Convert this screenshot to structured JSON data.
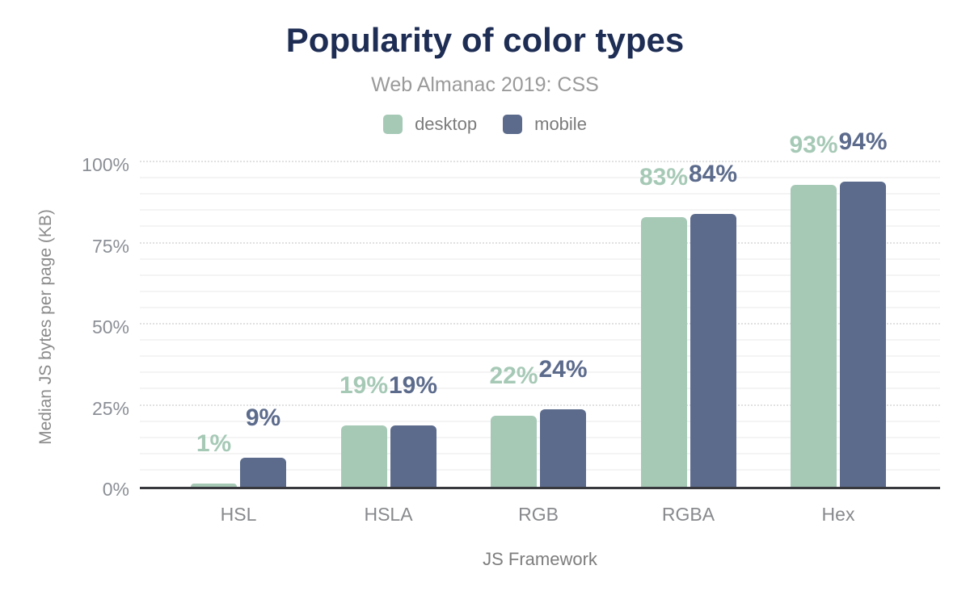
{
  "header": {
    "title": "Popularity of color types",
    "subtitle": "Web Almanac 2019: CSS"
  },
  "colors": {
    "desktop": "#a6c9b6",
    "mobile": "#5c6b8c",
    "title": "#1e2d54",
    "axis_baseline": "#38393e"
  },
  "legend": [
    {
      "label": "desktop",
      "color": "#a6c9b6"
    },
    {
      "label": "mobile",
      "color": "#5c6b8c"
    }
  ],
  "chart_data": {
    "type": "bar",
    "title": "Popularity of color types",
    "subtitle": "Web Almanac 2019: CSS",
    "categories": [
      "HSL",
      "HSLA",
      "RGB",
      "RGBA",
      "Hex"
    ],
    "series": [
      {
        "name": "desktop",
        "color": "#a6c9b6",
        "values": [
          1,
          19,
          22,
          83,
          93
        ]
      },
      {
        "name": "mobile",
        "color": "#5c6b8c",
        "values": [
          9,
          19,
          24,
          84,
          94
        ]
      }
    ],
    "value_label_format": "{v}%",
    "xlabel": "JS Framework",
    "ylabel": "Median JS bytes per page (KB)",
    "ylim": [
      0,
      100
    ],
    "yticks": [
      0,
      25,
      50,
      75,
      100
    ],
    "ytick_format": "{v}%",
    "grid": {
      "minor_step": 5,
      "major_step": 25,
      "enabled": true
    },
    "legend_position": "top"
  }
}
